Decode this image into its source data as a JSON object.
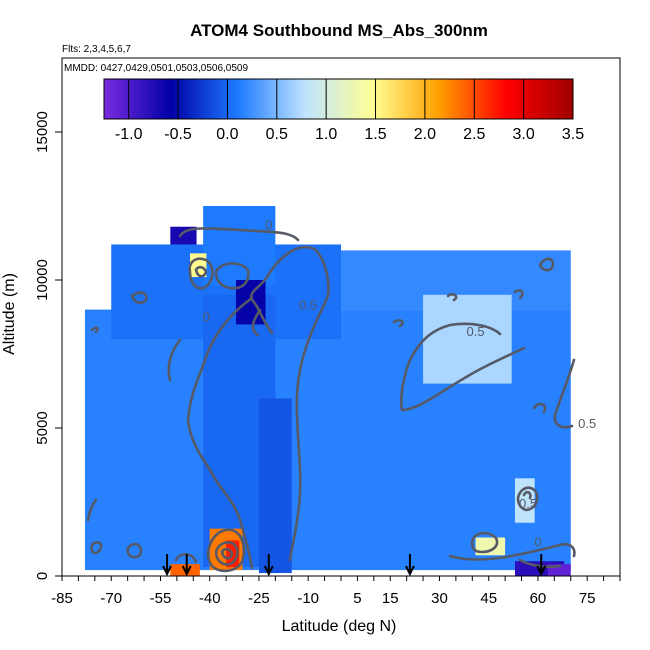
{
  "chart_data": {
    "type": "heatmap",
    "title": "ATOM4 Southbound MS_Abs_300nm",
    "flights_label": "Flts: 2,3,4,5,6,7",
    "dates_label": "MMDD: 0427,0429,0501,0503,0506,0509",
    "xlabel": "Latitude (deg N)",
    "ylabel": "Altitude (m)",
    "xlim": [
      -85,
      85
    ],
    "ylim": [
      0,
      17500
    ],
    "x_ticks": [
      -85,
      -70,
      -55,
      -40,
      -25,
      -10,
      5,
      15,
      30,
      45,
      60,
      75
    ],
    "x_ticks_minor_step": 5,
    "y_ticks": [
      0,
      5000,
      10000,
      15000
    ],
    "colorbar": {
      "range": [
        -1.25,
        3.5
      ],
      "ticks": [
        -1.0,
        -0.5,
        0.0,
        0.5,
        1.0,
        1.5,
        2.0,
        2.5,
        3.0,
        3.5
      ],
      "tick_labels": [
        "-1.0",
        "-0.5",
        "0.0",
        "0.5",
        "1.0",
        "1.5",
        "2.0",
        "2.5",
        "3.0",
        "3.5"
      ],
      "colors": [
        "#7a2be0",
        "#0000a6",
        "#1e7bff",
        "#bfe3ff",
        "#ffff96",
        "#ff9f00",
        "#ff0000",
        "#a00000"
      ]
    },
    "contour_labels": [
      "0",
      "0",
      "0.5",
      "0.5",
      "0.5",
      "0",
      "0.5"
    ],
    "profile_markers_latitude": [
      -53,
      -47,
      -22,
      21,
      61
    ],
    "regions": [
      {
        "lat": [
          -78,
          70
        ],
        "alt": [
          200,
          9000
        ],
        "value": 0.15
      },
      {
        "lat": [
          -70,
          0
        ],
        "alt": [
          8000,
          11200
        ],
        "value": 0.05
      },
      {
        "lat": [
          -42,
          -20
        ],
        "alt": [
          9800,
          12500
        ],
        "value": 0.1
      },
      {
        "lat": [
          0,
          70
        ],
        "alt": [
          9000,
          11000
        ],
        "value": 0.2
      },
      {
        "lat": [
          -42,
          -20
        ],
        "alt": [
          300,
          9500
        ],
        "value": 0.0
      },
      {
        "lat": [
          -25,
          -15
        ],
        "alt": [
          100,
          6000
        ],
        "value": -0.1
      },
      {
        "lat": [
          -32,
          -23
        ],
        "alt": [
          8500,
          10000
        ],
        "value": -0.6
      },
      {
        "lat": [
          -52,
          -44
        ],
        "alt": [
          11200,
          11800
        ],
        "value": -0.7
      },
      {
        "lat": [
          25,
          52
        ],
        "alt": [
          6500,
          9500
        ],
        "value": 0.7
      },
      {
        "lat": [
          -46,
          -41
        ],
        "alt": [
          10100,
          10900
        ],
        "value": 1.5
      },
      {
        "lat": [
          41,
          50
        ],
        "alt": [
          700,
          1300
        ],
        "value": 1.3
      },
      {
        "lat": [
          53,
          59
        ],
        "alt": [
          1800,
          3300
        ],
        "value": 0.8
      },
      {
        "lat": [
          -40,
          -30
        ],
        "alt": [
          200,
          1600
        ],
        "value": 2.3
      },
      {
        "lat": [
          -35,
          -31
        ],
        "alt": [
          300,
          1200
        ],
        "value": 2.7
      },
      {
        "lat": [
          -52,
          -43
        ],
        "alt": [
          0,
          400
        ],
        "value": 2.4
      },
      {
        "lat": [
          53,
          68
        ],
        "alt": [
          0,
          500
        ],
        "value": -0.8
      },
      {
        "lat": [
          63,
          70
        ],
        "alt": [
          0,
          400
        ],
        "value": -1.1
      }
    ]
  }
}
